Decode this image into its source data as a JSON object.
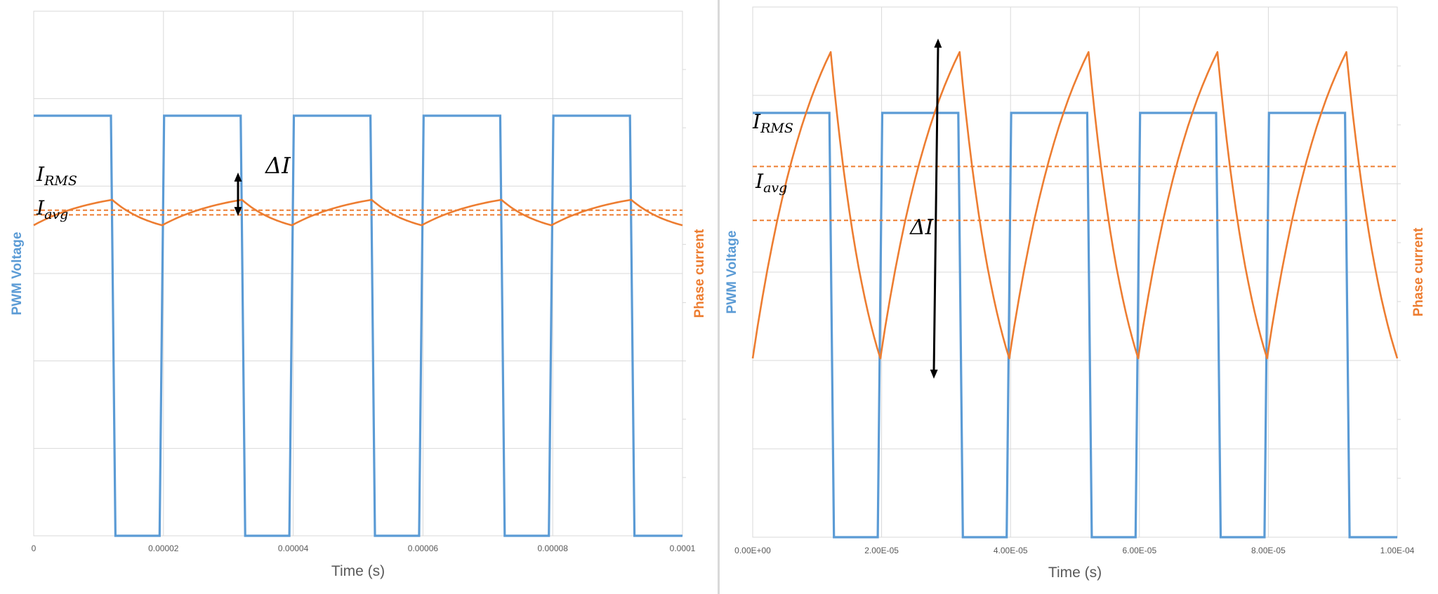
{
  "colors": {
    "voltage": "#5b9bd5",
    "current": "#ed7d31",
    "grid": "#d9d9d9",
    "arrow": "#000000"
  },
  "chart_data": [
    {
      "type": "line",
      "title": "",
      "xlabel": "Time (s)",
      "ylabel_left": "PWM Voltage",
      "ylabel_right": "Phase current",
      "x_ticks": [
        "0",
        "0.00002",
        "0.00004",
        "0.00006",
        "0.00008",
        "0.0001"
      ],
      "xlim": [
        0,
        0.0001
      ],
      "grid": true,
      "annotations": {
        "rms": "I",
        "rms_sub": "RMS",
        "avg": "I",
        "avg_sub": "avg",
        "delta": "ΔI"
      },
      "series": [
        {
          "name": "PWM Voltage",
          "axis": "left",
          "x": [
            0,
            1.19e-05,
            1.26e-05,
            1.94e-05,
            2.01e-05,
            3.19e-05,
            3.26e-05,
            3.94e-05,
            4.01e-05,
            5.19e-05,
            5.26e-05,
            5.94e-05,
            6.01e-05,
            7.19e-05,
            7.26e-05,
            7.94e-05,
            8.01e-05,
            9.19e-05,
            9.26e-05,
            0.0001
          ],
          "values": [
            1,
            1,
            0,
            0,
            1,
            1,
            0,
            0,
            1,
            1,
            0,
            0,
            1,
            1,
            0,
            0,
            1,
            1,
            0,
            0
          ]
        },
        {
          "name": "Phase current",
          "axis": "right",
          "x": [
            0,
            1.21e-05,
            1.98e-05,
            3.21e-05,
            3.98e-05,
            5.21e-05,
            5.98e-05,
            7.21e-05,
            7.98e-05,
            9.21e-05,
            0.0001
          ],
          "values": [
            0.36,
            0.47,
            0.36,
            0.47,
            0.36,
            0.47,
            0.36,
            0.47,
            0.36,
            0.47,
            0.36
          ],
          "shape": "exp-rise-fall"
        },
        {
          "name": "I_RMS",
          "axis": "right",
          "style": "dashed",
          "level": 0.425
        },
        {
          "name": "I_avg",
          "axis": "right",
          "style": "dashed",
          "level": 0.405
        }
      ]
    },
    {
      "type": "line",
      "title": "",
      "xlabel": "Time (s)",
      "ylabel_left": "PWM Voltage",
      "ylabel_right": "Phase current",
      "x_ticks": [
        "0.00E+00",
        "2.00E-05",
        "4.00E-05",
        "6.00E-05",
        "8.00E-05",
        "1.00E-04"
      ],
      "xlim": [
        0,
        0.0001
      ],
      "grid": true,
      "annotations": {
        "rms": "I",
        "rms_sub": "RMS",
        "avg": "I",
        "avg_sub": "avg",
        "delta": "ΔI"
      },
      "series": [
        {
          "name": "PWM Voltage",
          "axis": "left",
          "x": [
            0,
            1.19e-05,
            1.26e-05,
            1.94e-05,
            2.01e-05,
            3.19e-05,
            3.26e-05,
            3.94e-05,
            4.01e-05,
            5.19e-05,
            5.26e-05,
            5.94e-05,
            6.01e-05,
            7.19e-05,
            7.26e-05,
            7.94e-05,
            8.01e-05,
            9.19e-05,
            9.26e-05,
            0.0001
          ],
          "values": [
            1,
            1,
            0,
            0,
            1,
            1,
            0,
            0,
            1,
            1,
            0,
            0,
            1,
            1,
            0,
            0,
            1,
            1,
            0,
            0
          ]
        },
        {
          "name": "Phase current",
          "axis": "right",
          "x": [
            0,
            1.21e-05,
            1.98e-05,
            3.21e-05,
            3.98e-05,
            5.21e-05,
            5.98e-05,
            7.21e-05,
            7.98e-05,
            9.21e-05,
            0.0001
          ],
          "values": [
            0.05,
            0.96,
            0.05,
            0.96,
            0.05,
            0.96,
            0.05,
            0.96,
            0.05,
            0.96,
            0.05
          ],
          "shape": "exp-rise-fall"
        },
        {
          "name": "I_RMS",
          "axis": "right",
          "style": "dashed",
          "level": 0.62
        },
        {
          "name": "I_avg",
          "axis": "right",
          "style": "dashed",
          "level": 0.46
        }
      ]
    }
  ]
}
